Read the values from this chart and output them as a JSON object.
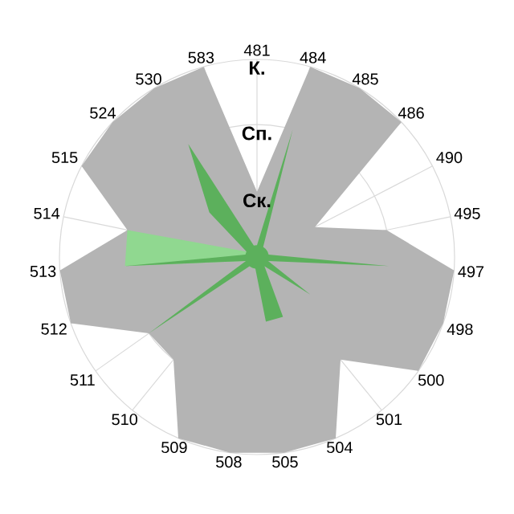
{
  "chart_data": {
    "type": "radar",
    "ylim": [
      0,
      1
    ],
    "grid": true,
    "categories": [
      "481",
      "484",
      "485",
      "486",
      "490",
      "495",
      "497",
      "498",
      "500",
      "501",
      "504",
      "505",
      "508",
      "509",
      "510",
      "511",
      "512",
      "513",
      "514",
      "515",
      "524",
      "530",
      "583"
    ],
    "yticks": [
      {
        "value": 0.33,
        "label": "Ск."
      },
      {
        "value": 0.67,
        "label": "Сп."
      },
      {
        "value": 1,
        "label": "К."
      }
    ],
    "series": [
      {
        "color": "#b4b4b4",
        "values": [
          0.33,
          1,
          1,
          1,
          0.33,
          0.67,
          1,
          1,
          1,
          0.67,
          1,
          1,
          1,
          1,
          0.67,
          0.67,
          1,
          1,
          0.67,
          1,
          1,
          1,
          1
        ]
      },
      {
        "color": "#90d890",
        "values": [
          0.06,
          0.06,
          0.06,
          0.06,
          0.06,
          0.06,
          0.06,
          0.06,
          0.06,
          0.06,
          0.06,
          0.06,
          0.06,
          0.06,
          0.06,
          0.06,
          0.06,
          0.67,
          0.67,
          0.06,
          0.06,
          0.06,
          0.06
        ]
      },
      {
        "color": "#5cb05c",
        "values": [
          0.06,
          0.67,
          0.06,
          0.06,
          0.06,
          0.06,
          0.67,
          0.06,
          0.33,
          0.06,
          0.33,
          0.33,
          0.06,
          0.06,
          0.06,
          0.67,
          0.06,
          0.67,
          0.06,
          0.06,
          0.33,
          0.67,
          0.06
        ]
      }
    ]
  }
}
